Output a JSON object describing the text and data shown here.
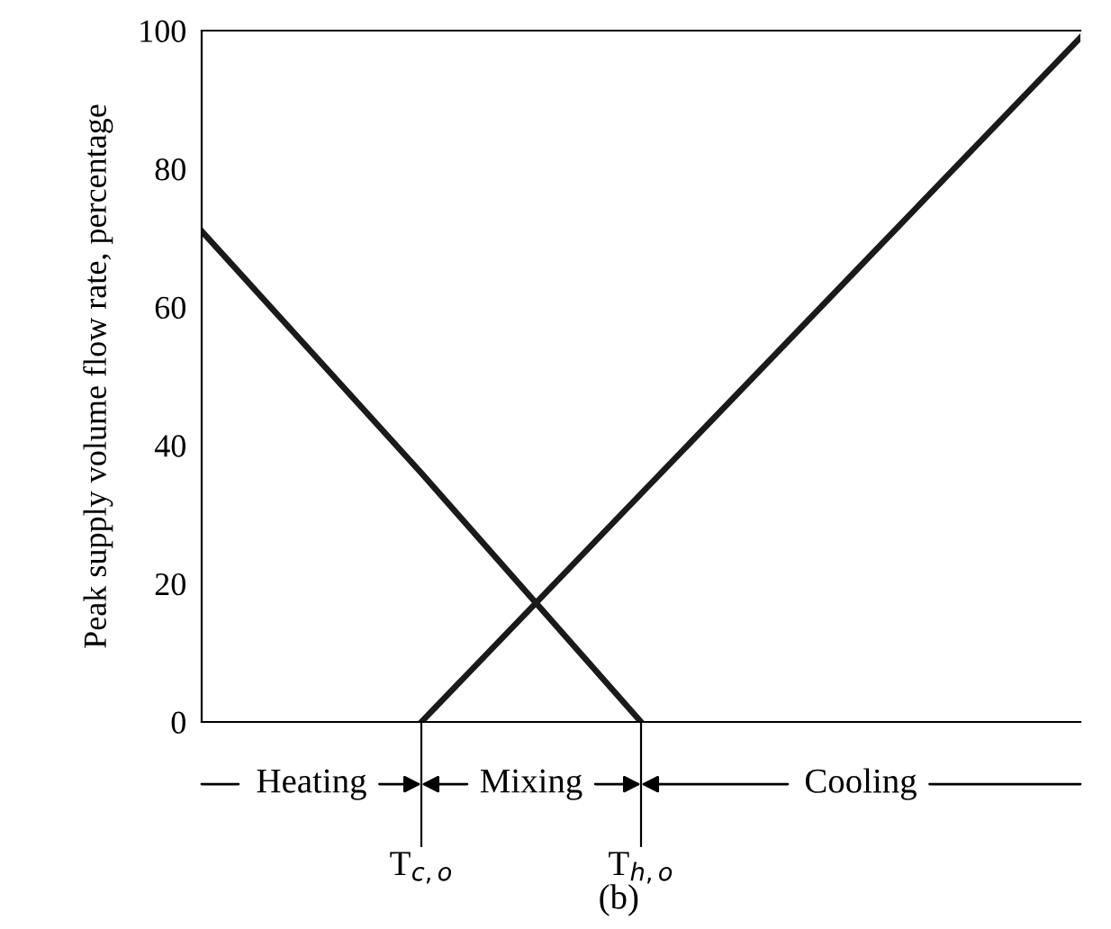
{
  "chart_data": {
    "type": "line",
    "ylabel": "Peak supply volume flow rate, percentage",
    "categories": [
      null,
      "T$_{c,o}$",
      "T$_{h,o}$",
      null,
      null
    ],
    "ylim": [
      0,
      100
    ],
    "yticks": [
      0,
      20,
      40,
      60,
      80,
      100
    ],
    "series": [
      {
        "color": "#1a1a1a",
        "values": [
          71,
          36,
          0,
          null,
          null
        ]
      },
      {
        "color": "#1a1a1a",
        "values": [
          null,
          0,
          33,
          66,
          99
        ]
      }
    ],
    "annotations": [
      "Heating",
      "Mixing",
      "Cooling",
      "(b)"
    ],
    "grid": false,
    "legend": false,
    "marker": "none",
    "line_style": "solid"
  }
}
